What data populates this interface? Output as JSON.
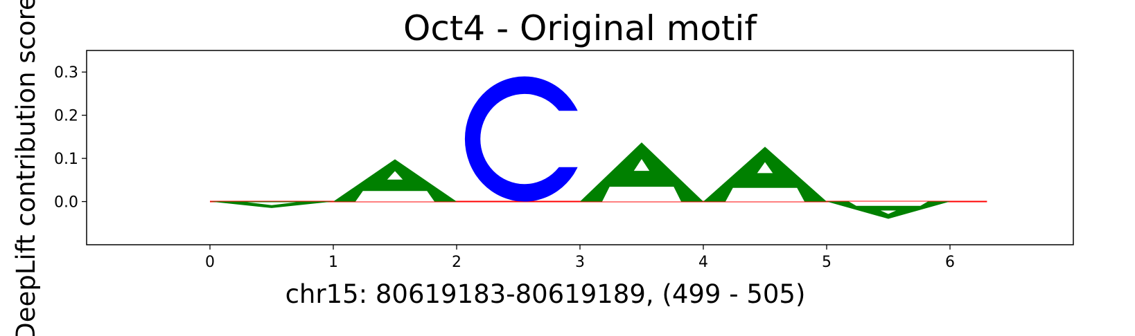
{
  "chart_data": {
    "type": "sequence-logo",
    "title": "Oct4 - Original motif",
    "xlabel": "chr15: 80619183-80619189, (499 - 505)",
    "ylabel": "DeepLift contribution score",
    "xlim": [
      -1,
      7
    ],
    "ylim": [
      -0.1,
      0.35
    ],
    "x_ticks": [
      "0",
      "1",
      "2",
      "3",
      "4",
      "5",
      "6"
    ],
    "y_ticks": [
      "0.0",
      "0.1",
      "0.2",
      "0.3"
    ],
    "letters": [
      {
        "position": 0,
        "letter": "A",
        "value": -0.015
      },
      {
        "position": 1,
        "letter": "A",
        "value": 0.098
      },
      {
        "position": 2,
        "letter": "C",
        "value": 0.29
      },
      {
        "position": 3,
        "letter": "A",
        "value": 0.137
      },
      {
        "position": 4,
        "letter": "A",
        "value": 0.127
      },
      {
        "position": 5,
        "letter": "A",
        "value": -0.04
      }
    ],
    "colors": {
      "A": "#008000",
      "C": "#0000ff",
      "baseline": "#ff0000"
    }
  }
}
